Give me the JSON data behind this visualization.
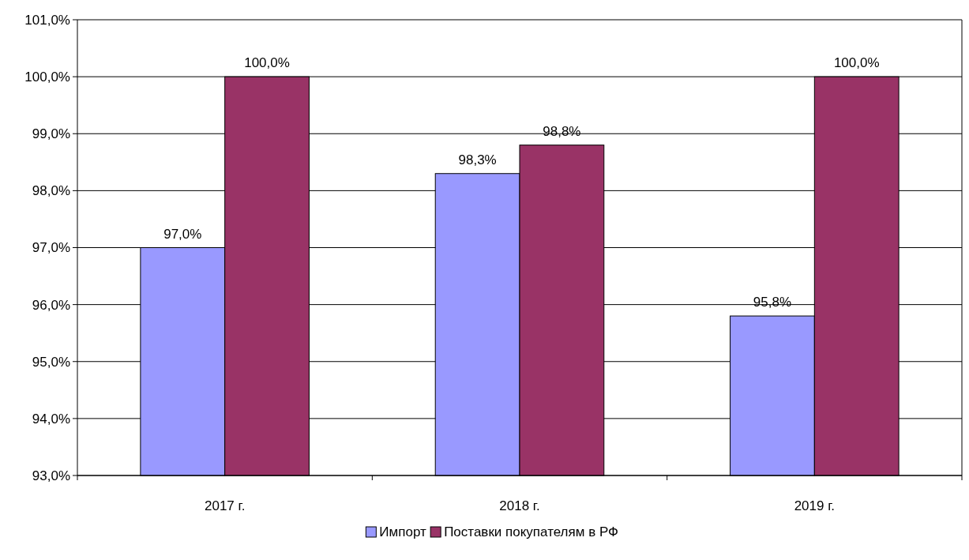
{
  "chart_data": {
    "type": "bar",
    "categories": [
      "2017 г.",
      "2018 г.",
      "2019 г."
    ],
    "series": [
      {
        "name": "Импорт",
        "color": "#9999ff",
        "values": [
          97.0,
          98.3,
          95.8
        ],
        "value_labels": [
          "97,0%",
          "98,3%",
          "95,8%"
        ]
      },
      {
        "name": "Поставки покупателям в РФ",
        "color": "#993366",
        "values": [
          100.0,
          98.8,
          100.0
        ],
        "value_labels": [
          "100,0%",
          "98,8%",
          "100,0%"
        ]
      }
    ],
    "ylim": [
      93,
      101
    ],
    "yticks": [
      {
        "value": 93,
        "label": "93,0%"
      },
      {
        "value": 94,
        "label": "94,0%"
      },
      {
        "value": 95,
        "label": "95,0%"
      },
      {
        "value": 96,
        "label": "96,0%"
      },
      {
        "value": 97,
        "label": "97,0%"
      },
      {
        "value": 98,
        "label": "98,0%"
      },
      {
        "value": 99,
        "label": "99,0%"
      },
      {
        "value": 100,
        "label": "100,0%"
      },
      {
        "value": 101,
        "label": "101,0%"
      }
    ],
    "grid": "y",
    "legend": "bottom"
  }
}
